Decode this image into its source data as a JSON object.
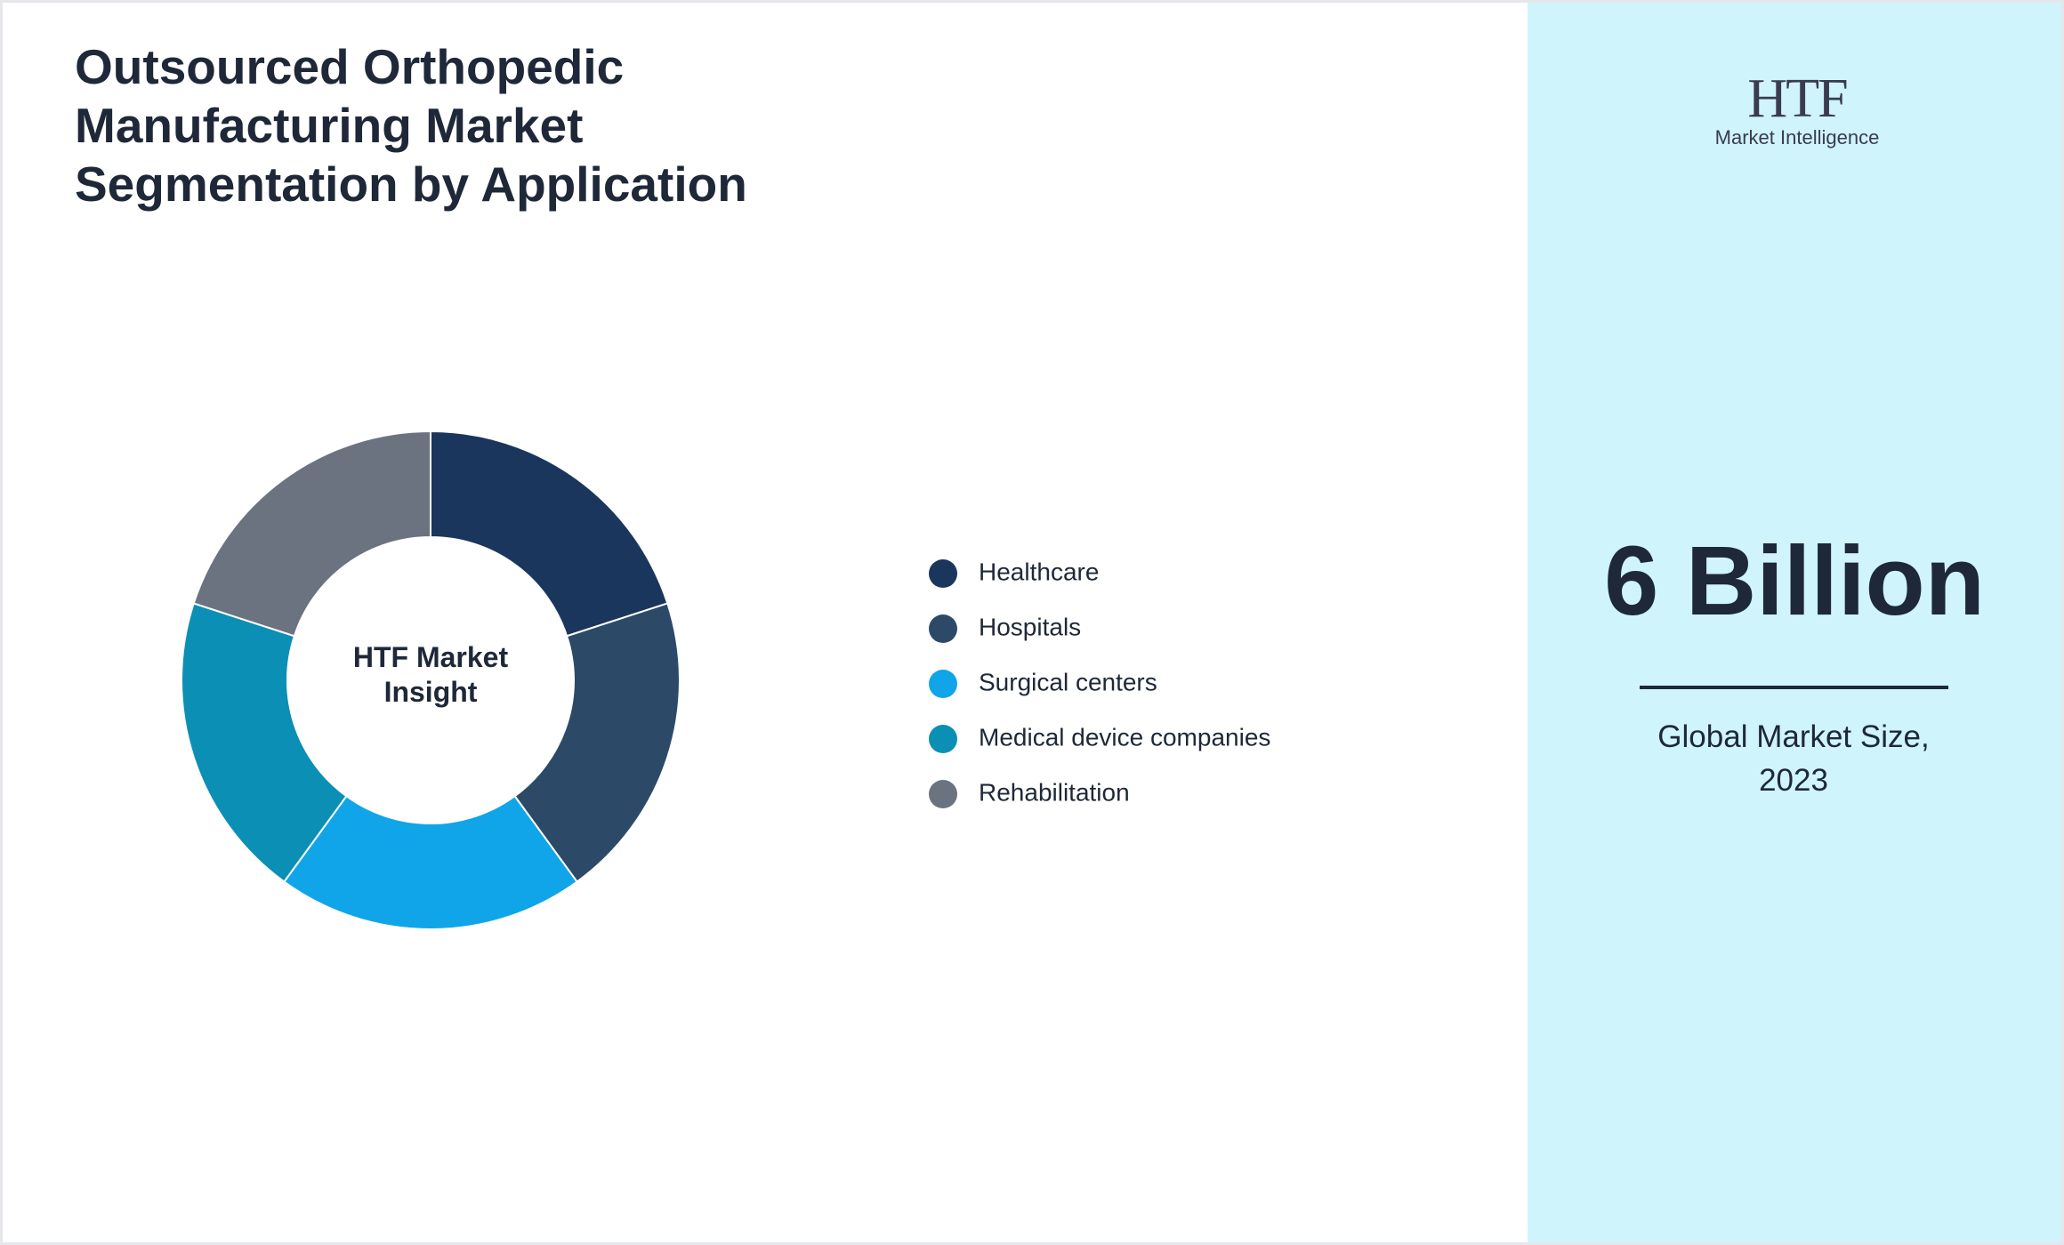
{
  "chart_data": {
    "type": "donut",
    "title": "Outsourced Orthopedic Manufacturing Market Segmentation by Application",
    "center_label": "HTF Market Insight",
    "categories": [
      "Healthcare",
      "Hospitals",
      "Surgical centers",
      "Medical device companies",
      "Rehabilitation"
    ],
    "values": [
      20,
      20,
      20,
      20,
      20
    ],
    "colors": [
      "#1b365d",
      "#2c4a67",
      "#10a5e8",
      "#0b8fb5",
      "#6b7280"
    ],
    "legend": "right"
  },
  "logo": {
    "mark": "HTF",
    "name": "Market Intelligence"
  },
  "stat": {
    "value": "6 Billion",
    "caption": "Global Market Size, 2023"
  }
}
